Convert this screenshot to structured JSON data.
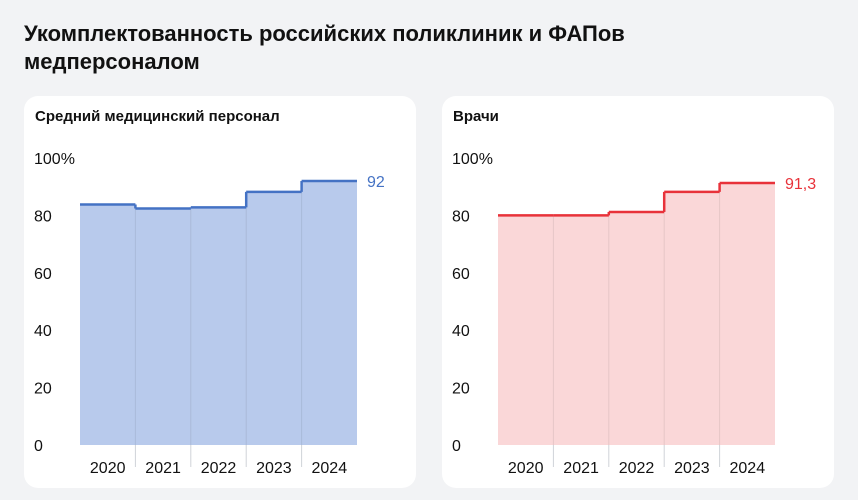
{
  "title": "Укомплектованность российских поликлиник и ФАПов медперсоналом",
  "chart_data": [
    {
      "type": "area",
      "title": "Средний медицинский персонал",
      "categories": [
        "2020",
        "2021",
        "2022",
        "2023",
        "2024"
      ],
      "values": [
        83.8,
        82.4,
        82.8,
        88.2,
        92
      ],
      "end_label": "92",
      "y_ticks": [
        "100%",
        "80",
        "60",
        "40",
        "20",
        "0"
      ],
      "ylim": [
        0,
        100
      ],
      "line_color": "#4472c4",
      "fill_color": "#b8caec",
      "label_color": "#4472c4"
    },
    {
      "type": "area",
      "title": "Врачи",
      "categories": [
        "2020",
        "2021",
        "2022",
        "2023",
        "2024"
      ],
      "values": [
        80.0,
        80.0,
        81.2,
        88.2,
        91.3
      ],
      "end_label": "91,3",
      "y_ticks": [
        "100%",
        "80",
        "60",
        "40",
        "20",
        "0"
      ],
      "ylim": [
        0,
        100
      ],
      "line_color": "#e8323a",
      "fill_color": "#fad7d8",
      "label_color": "#e8323a"
    }
  ]
}
